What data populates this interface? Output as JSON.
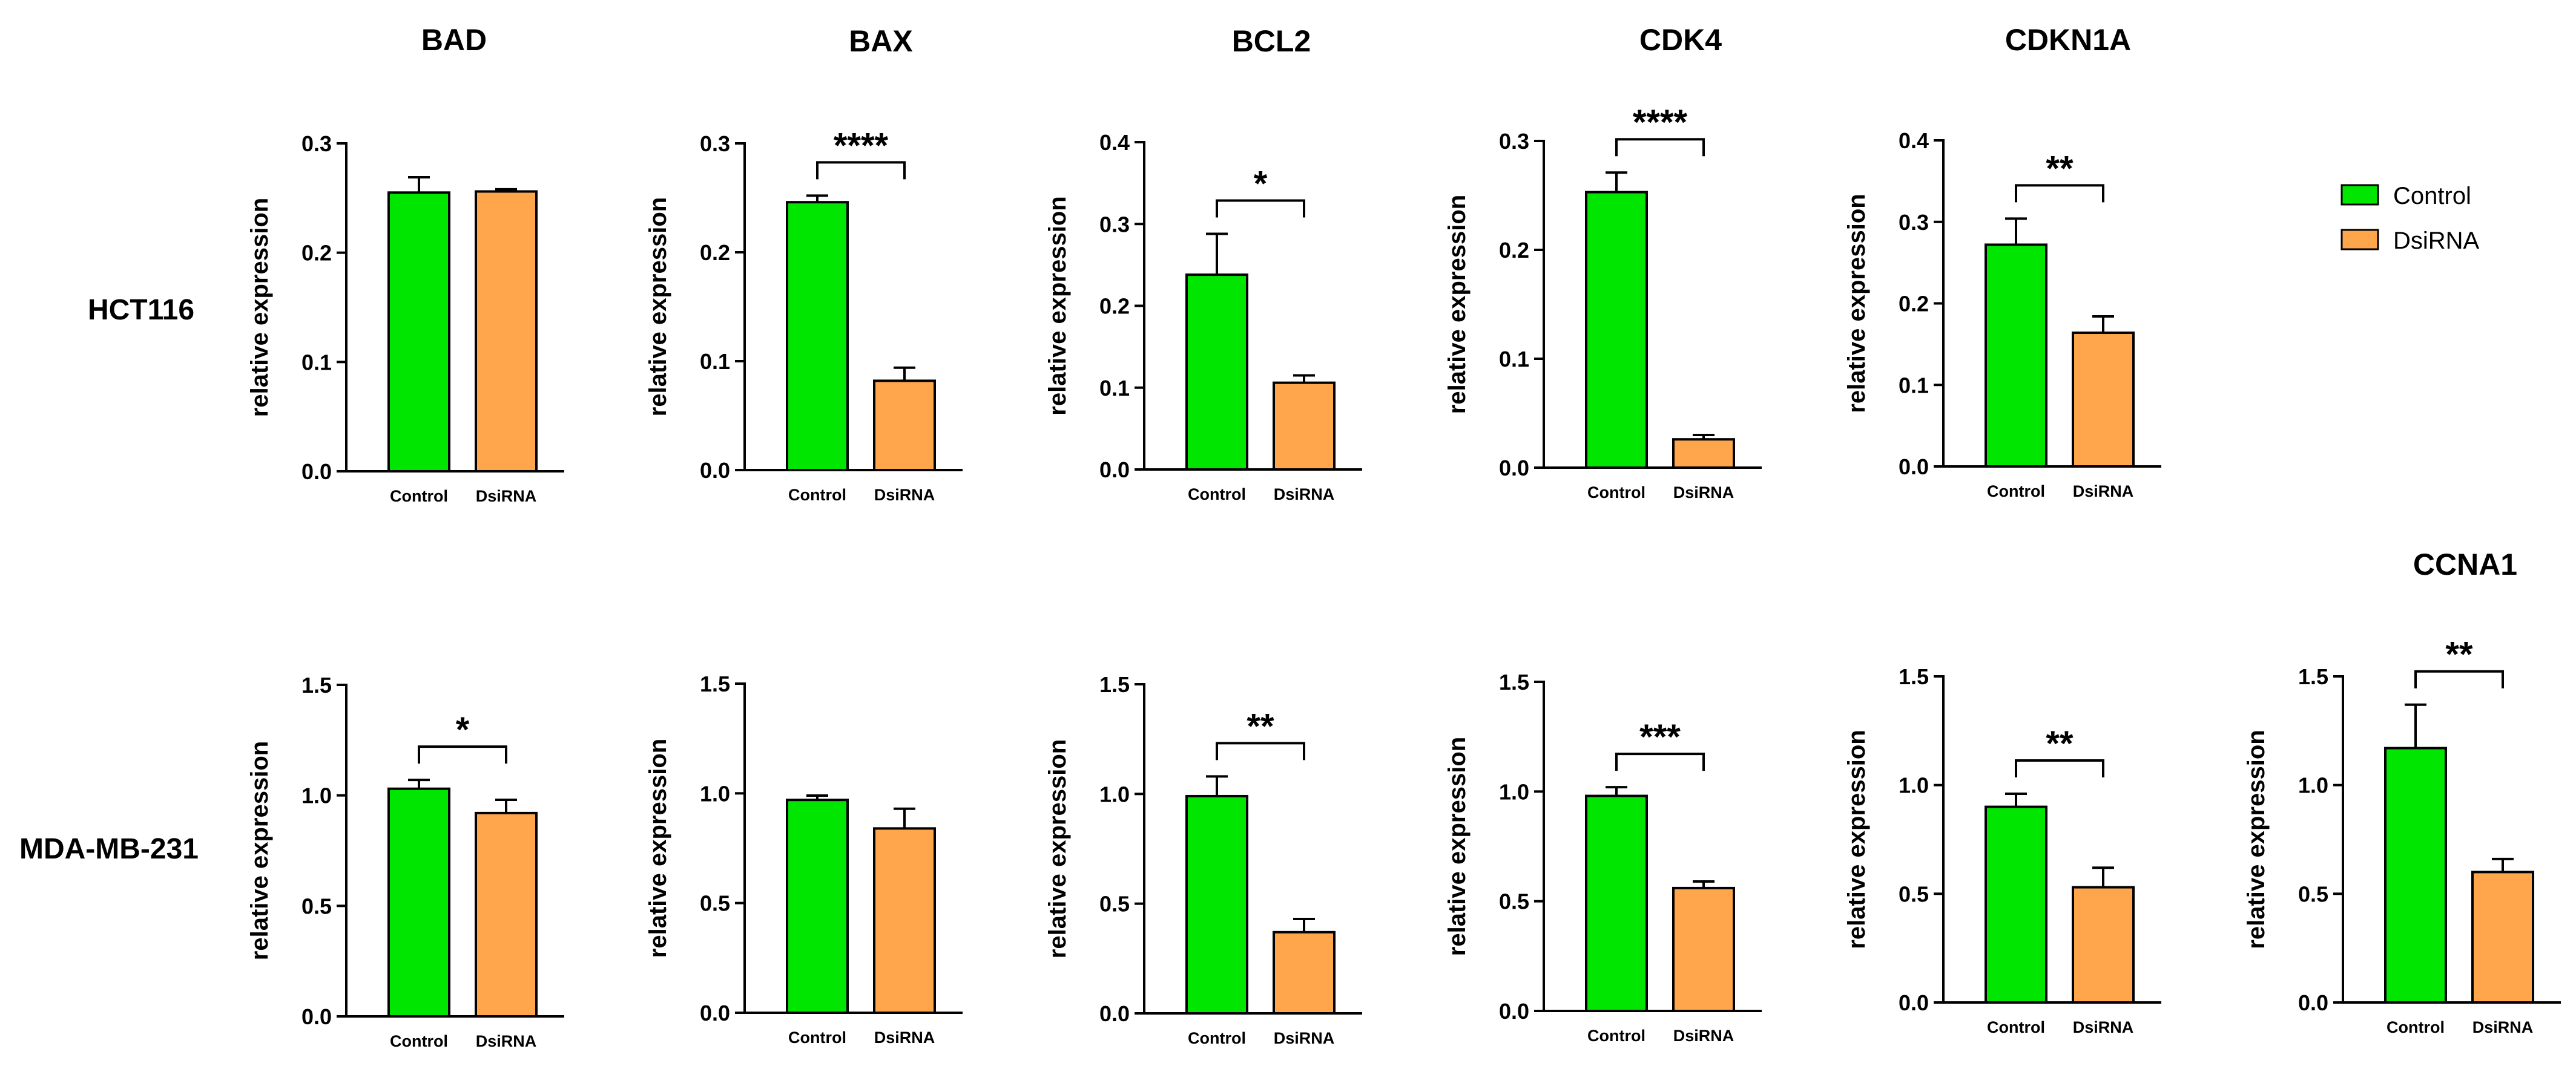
{
  "legend": {
    "items": [
      {
        "label": "Control",
        "color": "#00e600"
      },
      {
        "label": "DsiRNA",
        "color": "#ffa64d"
      }
    ]
  },
  "row_labels": [
    "HCT116",
    "MDA-MB-231"
  ],
  "chart_data": [
    {
      "type": "bar",
      "title": "BAD",
      "cell_line": "HCT116",
      "ylabel": "relative expression",
      "categories": [
        "Control",
        "DsiRNA"
      ],
      "values": [
        0.255,
        0.256
      ],
      "errors": [
        0.014,
        0.002
      ],
      "ylim": [
        0,
        0.3
      ],
      "yticks": [
        "0.0",
        "0.1",
        "0.2",
        "0.3"
      ],
      "significance": null
    },
    {
      "type": "bar",
      "title": "BAX",
      "cell_line": "HCT116",
      "ylabel": "relative expression",
      "categories": [
        "Control",
        "DsiRNA"
      ],
      "values": [
        0.246,
        0.082
      ],
      "errors": [
        0.006,
        0.012
      ],
      "ylim": [
        0,
        0.3
      ],
      "yticks": [
        "0.0",
        "0.1",
        "0.2",
        "0.3"
      ],
      "significance": "****"
    },
    {
      "type": "bar",
      "title": "BCL2",
      "cell_line": "HCT116",
      "ylabel": "relative expression",
      "categories": [
        "Control",
        "DsiRNA"
      ],
      "values": [
        0.238,
        0.106
      ],
      "errors": [
        0.05,
        0.009
      ],
      "ylim": [
        0,
        0.4
      ],
      "yticks": [
        "0.0",
        "0.1",
        "0.2",
        "0.3",
        "0.4"
      ],
      "significance": "*"
    },
    {
      "type": "bar",
      "title": "CDK4",
      "cell_line": "HCT116",
      "ylabel": "relative expression",
      "categories": [
        "Control",
        "DsiRNA"
      ],
      "values": [
        0.253,
        0.026
      ],
      "errors": [
        0.018,
        0.004
      ],
      "ylim": [
        0,
        0.3
      ],
      "yticks": [
        "0.0",
        "0.1",
        "0.2",
        "0.3"
      ],
      "significance": "****"
    },
    {
      "type": "bar",
      "title": "CDKN1A",
      "cell_line": "HCT116",
      "ylabel": "relative expression",
      "categories": [
        "Control",
        "DsiRNA"
      ],
      "values": [
        0.272,
        0.164
      ],
      "errors": [
        0.032,
        0.02
      ],
      "ylim": [
        0,
        0.4
      ],
      "yticks": [
        "0.0",
        "0.1",
        "0.2",
        "0.3",
        "0.4"
      ],
      "significance": "**"
    },
    {
      "type": "bar",
      "title": "BAD",
      "cell_line": "MDA-MB-231",
      "ylabel": "relative expression",
      "categories": [
        "Control",
        "DsiRNA"
      ],
      "values": [
        1.03,
        0.92
      ],
      "errors": [
        0.04,
        0.06
      ],
      "ylim": [
        0,
        1.5
      ],
      "yticks": [
        "0.0",
        "0.5",
        "1.0",
        "1.5"
      ],
      "significance": "*"
    },
    {
      "type": "bar",
      "title": "BAX",
      "cell_line": "MDA-MB-231",
      "ylabel": "relative expression",
      "categories": [
        "Control",
        "DsiRNA"
      ],
      "values": [
        0.97,
        0.84
      ],
      "errors": [
        0.02,
        0.09
      ],
      "ylim": [
        0,
        1.5
      ],
      "yticks": [
        "0.0",
        "0.5",
        "1.0",
        "1.5"
      ],
      "significance": null
    },
    {
      "type": "bar",
      "title": "BCL2",
      "cell_line": "MDA-MB-231",
      "ylabel": "relative expression",
      "categories": [
        "Control",
        "DsiRNA"
      ],
      "values": [
        0.99,
        0.37
      ],
      "errors": [
        0.09,
        0.06
      ],
      "ylim": [
        0,
        1.5
      ],
      "yticks": [
        "0.0",
        "0.5",
        "1.0",
        "1.5"
      ],
      "significance": "**"
    },
    {
      "type": "bar",
      "title": "CDK4",
      "cell_line": "MDA-MB-231",
      "ylabel": "relative expression",
      "categories": [
        "Control",
        "DsiRNA"
      ],
      "values": [
        0.98,
        0.56
      ],
      "errors": [
        0.04,
        0.03
      ],
      "ylim": [
        0,
        1.5
      ],
      "yticks": [
        "0.0",
        "0.5",
        "1.0",
        "1.5"
      ],
      "significance": "***"
    },
    {
      "type": "bar",
      "title": "CDKN1A",
      "cell_line": "MDA-MB-231",
      "ylabel": "relative expression",
      "categories": [
        "Control",
        "DsiRNA"
      ],
      "values": [
        0.9,
        0.53
      ],
      "errors": [
        0.06,
        0.09
      ],
      "ylim": [
        0,
        1.5
      ],
      "yticks": [
        "0.0",
        "0.5",
        "1.0",
        "1.5"
      ],
      "significance": "**"
    },
    {
      "type": "bar",
      "title": "CCNA1",
      "cell_line": "MDA-MB-231",
      "ylabel": "relative expression",
      "categories": [
        "Control",
        "DsiRNA"
      ],
      "values": [
        1.17,
        0.6
      ],
      "errors": [
        0.2,
        0.06
      ],
      "ylim": [
        0,
        1.5
      ],
      "yticks": [
        "0.0",
        "0.5",
        "1.0",
        "1.5"
      ],
      "significance": "**"
    }
  ]
}
